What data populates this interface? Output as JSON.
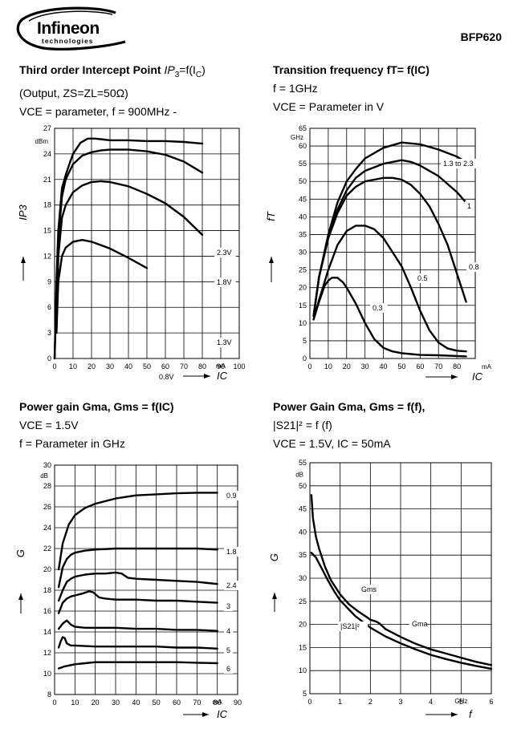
{
  "header": {
    "brand": "Infineon",
    "brand_sub": "technologies",
    "part": "BFP620"
  },
  "titles": [
    {
      "l1a": "Third order Intercept Point ",
      "l1b": "IP",
      "l1c": "3",
      "l1d": "=f(I",
      "l1e": "C",
      "l1f": ")",
      "l2": "(Output, ZS=ZL=50Ω)",
      "l3": "VCE = parameter, f = 900MHz -"
    },
    {
      "l1": "Transition frequency fT= f(IC)",
      "l2": "f = 1GHz",
      "l3": "VCE = Parameter in V"
    },
    {
      "l1": "Power gain Gma, Gms = f(IC)",
      "l2": "VCE = 1.5V",
      "l3": "f = Parameter in GHz"
    },
    {
      "l1": "Power Gain Gma, Gms =  f(f),",
      "l2": "|S21|² = f (f)",
      "l3": "VCE = 1.5V, IC = 50mA"
    }
  ],
  "chart_data": [
    {
      "type": "line",
      "ylabel": "IP3",
      "xlabel": "IC",
      "y_unit": "dBm",
      "x_unit": "mA",
      "xlim": [
        0,
        100
      ],
      "ylim": [
        0,
        27
      ],
      "x_ticks": [
        0,
        10,
        20,
        30,
        40,
        50,
        60,
        70,
        80,
        90,
        100
      ],
      "y_ticks": [
        0,
        3,
        6,
        9,
        12,
        15,
        18,
        21,
        24,
        27
      ],
      "grid": true,
      "series": [
        {
          "name": "2.3V",
          "x": [
            0,
            1,
            2,
            4,
            6,
            8,
            10,
            14,
            18,
            22,
            30,
            40,
            50,
            60,
            70,
            80
          ],
          "y": [
            0,
            9,
            15,
            20,
            21.5,
            22.8,
            24,
            25.3,
            25.8,
            25.8,
            25.6,
            25.6,
            25.5,
            25.5,
            25.4,
            25.2
          ]
        },
        {
          "name": "1.8V",
          "x": [
            0,
            2,
            4,
            6,
            10,
            15,
            20,
            25,
            30,
            40,
            50,
            60,
            70,
            80
          ],
          "y": [
            0,
            14,
            19,
            21,
            22.8,
            23.8,
            24.2,
            24.4,
            24.5,
            24.5,
            24.3,
            23.9,
            23.1,
            21.8
          ]
        },
        {
          "name": "1.3V",
          "x": [
            1,
            2,
            4,
            6,
            10,
            15,
            20,
            25,
            30,
            40,
            50,
            60,
            70,
            80
          ],
          "y": [
            3,
            12,
            16.5,
            18,
            19.5,
            20.3,
            20.7,
            20.8,
            20.7,
            20.2,
            19.3,
            18.2,
            16.6,
            14.5
          ]
        },
        {
          "name": "0.8V",
          "x": [
            1,
            2,
            4,
            6,
            10,
            15,
            20,
            30,
            40,
            50
          ],
          "y": [
            3,
            9,
            12,
            13,
            13.7,
            13.9,
            13.7,
            12.9,
            11.8,
            10.6
          ]
        }
      ]
    },
    {
      "type": "line",
      "ylabel": "fT",
      "xlabel": "IC",
      "y_unit": "GHz",
      "x_unit": "mA",
      "xlim": [
        0,
        90
      ],
      "ylim": [
        0,
        65
      ],
      "x_ticks": [
        0,
        10,
        20,
        30,
        40,
        50,
        60,
        70,
        80
      ],
      "y_ticks": [
        0,
        5,
        10,
        15,
        20,
        25,
        30,
        35,
        40,
        45,
        50,
        55,
        60,
        65
      ],
      "grid": true,
      "series": [
        {
          "name": "1.3 to 2.3",
          "x": [
            2,
            5,
            10,
            15,
            20,
            25,
            30,
            40,
            50,
            60,
            70,
            80,
            85
          ],
          "y": [
            12,
            23,
            35,
            44,
            50,
            53.5,
            56.5,
            59.5,
            61,
            60.5,
            59,
            57,
            55.5
          ]
        },
        {
          "name": "1",
          "x": [
            2,
            5,
            10,
            15,
            20,
            25,
            30,
            40,
            50,
            55,
            60,
            70,
            80,
            85
          ],
          "y": [
            12,
            23,
            34,
            42,
            47.5,
            51,
            53,
            55,
            56,
            55.5,
            54.5,
            51.5,
            47,
            44
          ]
        },
        {
          "name": "0.8",
          "x": [
            2,
            5,
            10,
            15,
            20,
            25,
            30,
            35,
            40,
            45,
            50,
            55,
            60,
            65,
            70,
            75,
            80,
            85
          ],
          "y": [
            12,
            23,
            34,
            41,
            46,
            48.5,
            50,
            50.5,
            51,
            51,
            50.5,
            49,
            46.5,
            43,
            38,
            32,
            24,
            16
          ]
        },
        {
          "name": "0.5",
          "x": [
            2,
            5,
            10,
            15,
            20,
            25,
            30,
            35,
            40,
            45,
            50,
            55,
            60,
            65,
            70,
            75,
            80,
            85
          ],
          "y": [
            11,
            16.5,
            25,
            32,
            36,
            37.5,
            37.5,
            36.5,
            34,
            30,
            26,
            20,
            13.5,
            8,
            4.5,
            2.8,
            2.2,
            2
          ]
        },
        {
          "name": "0.3",
          "x": [
            2,
            5,
            8,
            10,
            12,
            15,
            18,
            20,
            25,
            30,
            35,
            40,
            45,
            50,
            60,
            70,
            80,
            85
          ],
          "y": [
            11,
            16,
            20.5,
            22,
            22.8,
            22.8,
            21.5,
            20,
            15.5,
            10,
            5.5,
            3,
            2,
            1.5,
            1,
            0.9,
            0.7,
            0.6
          ]
        }
      ]
    },
    {
      "type": "line",
      "ylabel": "G",
      "xlabel": "IC",
      "y_unit": "dB",
      "x_unit": "mA",
      "xlim": [
        0,
        90
      ],
      "ylim": [
        8,
        30
      ],
      "x_ticks": [
        0,
        10,
        20,
        30,
        40,
        50,
        60,
        70,
        80,
        90
      ],
      "y_ticks": [
        8,
        10,
        12,
        14,
        16,
        18,
        20,
        22,
        24,
        26,
        28,
        30
      ],
      "grid": true,
      "series": [
        {
          "name": "0.9",
          "x": [
            2,
            4,
            7,
            10,
            15,
            20,
            30,
            40,
            50,
            60,
            70,
            80
          ],
          "y": [
            20,
            22.5,
            24.3,
            25.2,
            25.9,
            26.3,
            26.8,
            27.1,
            27.2,
            27.3,
            27.35,
            27.35
          ]
        },
        {
          "name": "1.8",
          "x": [
            2,
            4,
            6,
            8,
            10,
            15,
            20,
            30,
            40,
            50,
            60,
            70,
            80
          ],
          "y": [
            18.3,
            20.2,
            21,
            21.4,
            21.6,
            21.8,
            21.9,
            22,
            22,
            22,
            22,
            22,
            21.9
          ]
        },
        {
          "name": "2.4",
          "x": [
            2,
            4,
            6,
            8,
            10,
            15,
            20,
            25,
            30,
            33,
            36,
            40,
            50,
            60,
            70,
            80
          ],
          "y": [
            17,
            18,
            18.8,
            19.1,
            19.3,
            19.5,
            19.6,
            19.6,
            19.7,
            19.6,
            19.2,
            19.1,
            19,
            18.9,
            18.8,
            18.6
          ]
        },
        {
          "name": "3",
          "x": [
            2,
            4,
            6,
            8,
            10,
            14,
            17,
            19,
            22,
            25,
            30,
            40,
            50,
            60,
            70,
            80
          ],
          "y": [
            15.8,
            16.8,
            17.2,
            17.4,
            17.5,
            17.7,
            17.9,
            17.8,
            17.3,
            17.2,
            17.1,
            17.1,
            17,
            17,
            16.9,
            16.8
          ]
        },
        {
          "name": "4",
          "x": [
            2,
            4,
            6,
            8,
            10,
            15,
            20,
            30,
            40,
            50,
            60,
            70,
            80
          ],
          "y": [
            14.3,
            14.8,
            15.1,
            14.7,
            14.5,
            14.4,
            14.4,
            14.4,
            14.3,
            14.3,
            14.2,
            14.2,
            14.1
          ]
        },
        {
          "name": "5",
          "x": [
            2,
            3,
            4,
            5,
            6,
            8,
            10,
            20,
            30,
            40,
            50,
            60,
            70,
            80
          ],
          "y": [
            12.5,
            13.1,
            13.5,
            13.4,
            12.9,
            12.7,
            12.7,
            12.6,
            12.6,
            12.6,
            12.6,
            12.5,
            12.5,
            12.4
          ]
        },
        {
          "name": "6",
          "x": [
            2,
            5,
            10,
            15,
            20,
            30,
            40,
            50,
            60,
            70,
            80
          ],
          "y": [
            10.5,
            10.7,
            10.9,
            11,
            11.1,
            11.1,
            11.1,
            11.1,
            11.1,
            11.05,
            11
          ]
        }
      ]
    },
    {
      "type": "line",
      "ylabel": "G",
      "xlabel": "f",
      "y_unit": "dB",
      "x_unit": "GHz",
      "xlim": [
        0,
        6
      ],
      "ylim": [
        5,
        55
      ],
      "x_ticks": [
        0,
        1,
        2,
        3,
        4,
        5,
        6
      ],
      "y_ticks": [
        5,
        10,
        15,
        20,
        25,
        30,
        35,
        40,
        45,
        50,
        55
      ],
      "grid": true,
      "annotations": [
        "Gms",
        "Gma",
        "|S21|²"
      ],
      "series": [
        {
          "name": "Gms",
          "x": [
            0.05,
            0.1,
            0.2,
            0.3,
            0.5,
            0.7,
            1.0,
            1.3,
            1.6,
            1.9,
            2.0,
            2.2,
            2.3
          ],
          "y": [
            48,
            43,
            39,
            36.5,
            32.5,
            29.5,
            26.5,
            24.3,
            22.8,
            21.5,
            21,
            20.6,
            20.2
          ]
        },
        {
          "name": "Gma",
          "x": [
            2.3,
            2.5,
            3.0,
            3.5,
            4.0,
            4.5,
            5.0,
            5.5,
            6.0
          ],
          "y": [
            20.2,
            19,
            17.3,
            15.8,
            14.6,
            13.7,
            12.8,
            11.9,
            11.2
          ]
        },
        {
          "name": "|S21|²",
          "x": [
            0.05,
            0.2,
            0.4,
            0.6,
            0.8,
            1.0,
            1.5,
            2.0,
            2.5,
            3.0,
            3.5,
            4.0,
            4.5,
            5.0,
            5.5,
            6.0
          ],
          "y": [
            35.5,
            34.5,
            32,
            29.5,
            27.2,
            25.2,
            21.8,
            19.3,
            17.4,
            15.9,
            14.6,
            13.4,
            12.5,
            11.7,
            11,
            10.4
          ]
        }
      ]
    }
  ]
}
